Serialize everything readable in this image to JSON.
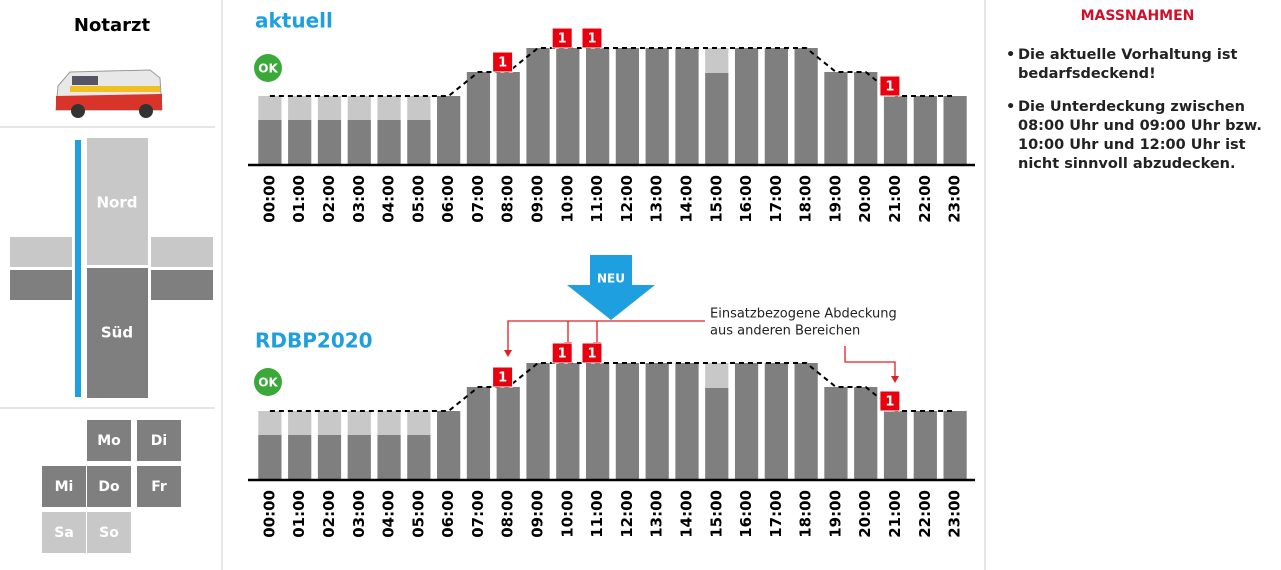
{
  "sidebar": {
    "title": "Notarzt",
    "regions": [
      "Nord",
      "Süd"
    ],
    "days": [
      "Mo",
      "Di",
      "Mi",
      "Do",
      "Fr",
      "Sa",
      "So"
    ]
  },
  "arrow_label": "NEU",
  "measures": {
    "title": "MASSNAHMEN",
    "items": [
      "Die aktuelle Vorhaltung ist bedarfsdeckend!",
      "Die Unterdeckung zwischen 08:00 Uhr und 09:00 Uhr bzw. 10:00 Uhr und 12:00 Uhr ist nicht sinnvoll abzudecken."
    ]
  },
  "chart_data": [
    {
      "type": "bar",
      "title": "aktuell",
      "status": "OK",
      "categories": [
        "00:00",
        "01:00",
        "02:00",
        "03:00",
        "04:00",
        "05:00",
        "06:00",
        "07:00",
        "08:00",
        "09:00",
        "10:00",
        "11:00",
        "12:00",
        "13:00",
        "14:00",
        "15:00",
        "16:00",
        "17:00",
        "18:00",
        "19:00",
        "20:00",
        "21:00",
        "22:00",
        "23:00"
      ],
      "series": [
        {
          "color": "#7f7f7f",
          "values": [
            45,
            45,
            45,
            45,
            45,
            45,
            69,
            93,
            93,
            117,
            117,
            117,
            117,
            117,
            117,
            92,
            117,
            117,
            117,
            93,
            93,
            69,
            69,
            69
          ]
        },
        {
          "color": "#c8c8c8",
          "values": [
            24,
            24,
            24,
            24,
            24,
            24,
            0,
            0,
            0,
            0,
            0,
            0,
            0,
            0,
            0,
            25,
            0,
            0,
            0,
            0,
            0,
            0,
            0,
            0
          ]
        },
        {
          "type": "line",
          "dashed": true,
          "color": "#000000",
          "values": [
            69,
            69,
            69,
            69,
            69,
            69,
            69,
            93,
            93,
            117,
            117,
            117,
            117,
            117,
            117,
            117,
            117,
            117,
            117,
            93,
            93,
            69,
            69,
            69
          ]
        }
      ],
      "markers": [
        {
          "index": 8,
          "label": "1"
        },
        {
          "index": 10,
          "label": "1"
        },
        {
          "index": 11,
          "label": "1"
        },
        {
          "index": 21,
          "label": "1"
        }
      ],
      "ylim": [
        0,
        120
      ]
    },
    {
      "type": "bar",
      "title": "RDBP2020",
      "status": "OK",
      "categories": [
        "00:00",
        "01:00",
        "02:00",
        "03:00",
        "04:00",
        "05:00",
        "06:00",
        "07:00",
        "08:00",
        "09:00",
        "10:00",
        "11:00",
        "12:00",
        "13:00",
        "14:00",
        "15:00",
        "16:00",
        "17:00",
        "18:00",
        "19:00",
        "20:00",
        "21:00",
        "22:00",
        "23:00"
      ],
      "series": [
        {
          "color": "#7f7f7f",
          "values": [
            45,
            45,
            45,
            45,
            45,
            45,
            69,
            93,
            93,
            117,
            117,
            117,
            117,
            117,
            117,
            92,
            117,
            117,
            117,
            93,
            93,
            69,
            69,
            69
          ]
        },
        {
          "color": "#c8c8c8",
          "values": [
            24,
            24,
            24,
            24,
            24,
            24,
            0,
            0,
            0,
            0,
            0,
            0,
            0,
            0,
            0,
            25,
            0,
            0,
            0,
            0,
            0,
            0,
            0,
            0
          ]
        },
        {
          "type": "line",
          "dashed": true,
          "color": "#000000",
          "values": [
            69,
            69,
            69,
            69,
            69,
            69,
            69,
            93,
            93,
            117,
            117,
            117,
            117,
            117,
            117,
            117,
            117,
            117,
            117,
            93,
            93,
            69,
            69,
            69
          ]
        }
      ],
      "markers": [
        {
          "index": 8,
          "label": "1"
        },
        {
          "index": 10,
          "label": "1"
        },
        {
          "index": 11,
          "label": "1"
        },
        {
          "index": 21,
          "label": "1"
        }
      ],
      "annotation": [
        "Einsatzbezogene Abdeckung",
        "aus anderen Bereichen"
      ],
      "ylim": [
        0,
        120
      ]
    }
  ]
}
